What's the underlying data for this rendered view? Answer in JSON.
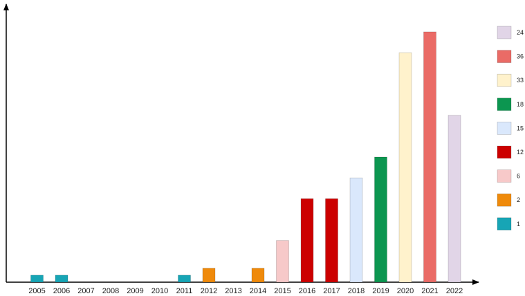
{
  "chart_data": {
    "type": "bar",
    "categories": [
      "2005",
      "2006",
      "2007",
      "2008",
      "2009",
      "2010",
      "2011",
      "2012",
      "2013",
      "2014",
      "2015",
      "2016",
      "2017",
      "2018",
      "2019",
      "2020",
      "2021",
      "2022"
    ],
    "values": [
      1,
      1,
      0,
      0,
      0,
      0,
      1,
      2,
      0,
      2,
      6,
      12,
      12,
      15,
      18,
      33,
      36,
      24
    ],
    "bar_colors": [
      "#17a5b5",
      "#17a5b5",
      "",
      "",
      "",
      "",
      "#17a5b5",
      "#ef8a0b",
      "",
      "#ef8a0b",
      "#f7c9c9",
      "#cc0000",
      "#cc0000",
      "#dae8fc",
      "#0c9650",
      "#fff2cc",
      "#ea6b66",
      "#e1d5e7"
    ],
    "ylim": [
      0,
      40
    ],
    "grid": false,
    "legend_position": "right",
    "legend": [
      {
        "label": "24",
        "color": "#e1d5e7"
      },
      {
        "label": "36",
        "color": "#ea6b66"
      },
      {
        "label": "33",
        "color": "#fff2cc"
      },
      {
        "label": "18",
        "color": "#0c9650"
      },
      {
        "label": "15",
        "color": "#dae8fc"
      },
      {
        "label": "12",
        "color": "#cc0000"
      },
      {
        "label": "6",
        "color": "#f7c9c9"
      },
      {
        "label": "2",
        "color": "#ef8a0b"
      },
      {
        "label": "1",
        "color": "#17a5b5"
      }
    ]
  }
}
